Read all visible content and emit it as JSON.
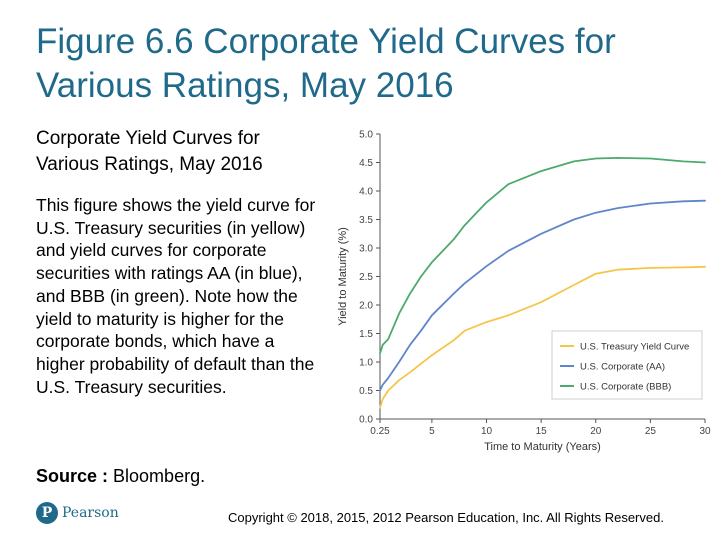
{
  "slide": {
    "title": "Figure 6.6 Corporate Yield Curves for Various Ratings, May 2016",
    "subtitle": "Corporate Yield Curves for Various Ratings, May 2016",
    "description": "This figure shows the yield curve for U.S. Treasury securities (in yellow) and yield curves for corporate securities with ratings AA (in blue), and BBB (in green). Note how the yield to maturity is higher for the corporate bonds, which have a higher probability of default than the U.S. Treasury securities.",
    "source_label": "Source :",
    "source_value": " Bloomberg.",
    "copyright": "Copyright © 2018, 2015, 2012 Pearson Education, Inc. All Rights Reserved.",
    "logo_text": "Pearson",
    "logo_mark": "P"
  },
  "colors": {
    "title": "#1f6a8a",
    "treasury": "#f5c54c",
    "aa": "#5f86c9",
    "bbb": "#4caa6c"
  },
  "chart_data": {
    "type": "line",
    "title": "",
    "xlabel": "Time to Maturity (Years)",
    "ylabel": "Yield to Maturity (%)",
    "xlim": [
      0.25,
      30
    ],
    "ylim": [
      0,
      5
    ],
    "x_ticks": [
      0.25,
      5,
      10,
      15,
      20,
      25,
      30
    ],
    "x_tick_labels": [
      "0.25",
      "5",
      "10",
      "15",
      "20",
      "25",
      "30"
    ],
    "y_ticks": [
      0,
      0.5,
      1,
      1.5,
      2,
      2.5,
      3,
      3.5,
      4,
      4.5,
      5
    ],
    "y_tick_labels": [
      "0.0",
      "0.5",
      "1.0",
      "1.5",
      "2.0",
      "2.5",
      "3.0",
      "3.5",
      "4.0",
      "4.5",
      "5.0"
    ],
    "legend_position": "bottom-right",
    "x": [
      0.25,
      0.5,
      1,
      2,
      3,
      4,
      5,
      7,
      8,
      10,
      12,
      15,
      18,
      20,
      22,
      25,
      28,
      30
    ],
    "series": [
      {
        "name": "U.S. Treasury Yield Curve",
        "color": "#f5c54c",
        "values": [
          0.2,
          0.35,
          0.5,
          0.68,
          0.82,
          0.97,
          1.12,
          1.38,
          1.55,
          1.7,
          1.82,
          2.05,
          2.35,
          2.55,
          2.62,
          2.65,
          2.66,
          2.67
        ]
      },
      {
        "name": "U.S. Corporate (AA)",
        "color": "#5f86c9",
        "values": [
          0.5,
          0.6,
          0.72,
          1.0,
          1.3,
          1.55,
          1.82,
          2.2,
          2.38,
          2.68,
          2.95,
          3.25,
          3.5,
          3.62,
          3.7,
          3.78,
          3.82,
          3.83
        ]
      },
      {
        "name": "U.S. Corporate (BBB)",
        "color": "#4caa6c",
        "values": [
          1.15,
          1.3,
          1.4,
          1.85,
          2.2,
          2.5,
          2.75,
          3.15,
          3.4,
          3.8,
          4.12,
          4.35,
          4.52,
          4.57,
          4.58,
          4.57,
          4.52,
          4.5
        ]
      }
    ]
  }
}
